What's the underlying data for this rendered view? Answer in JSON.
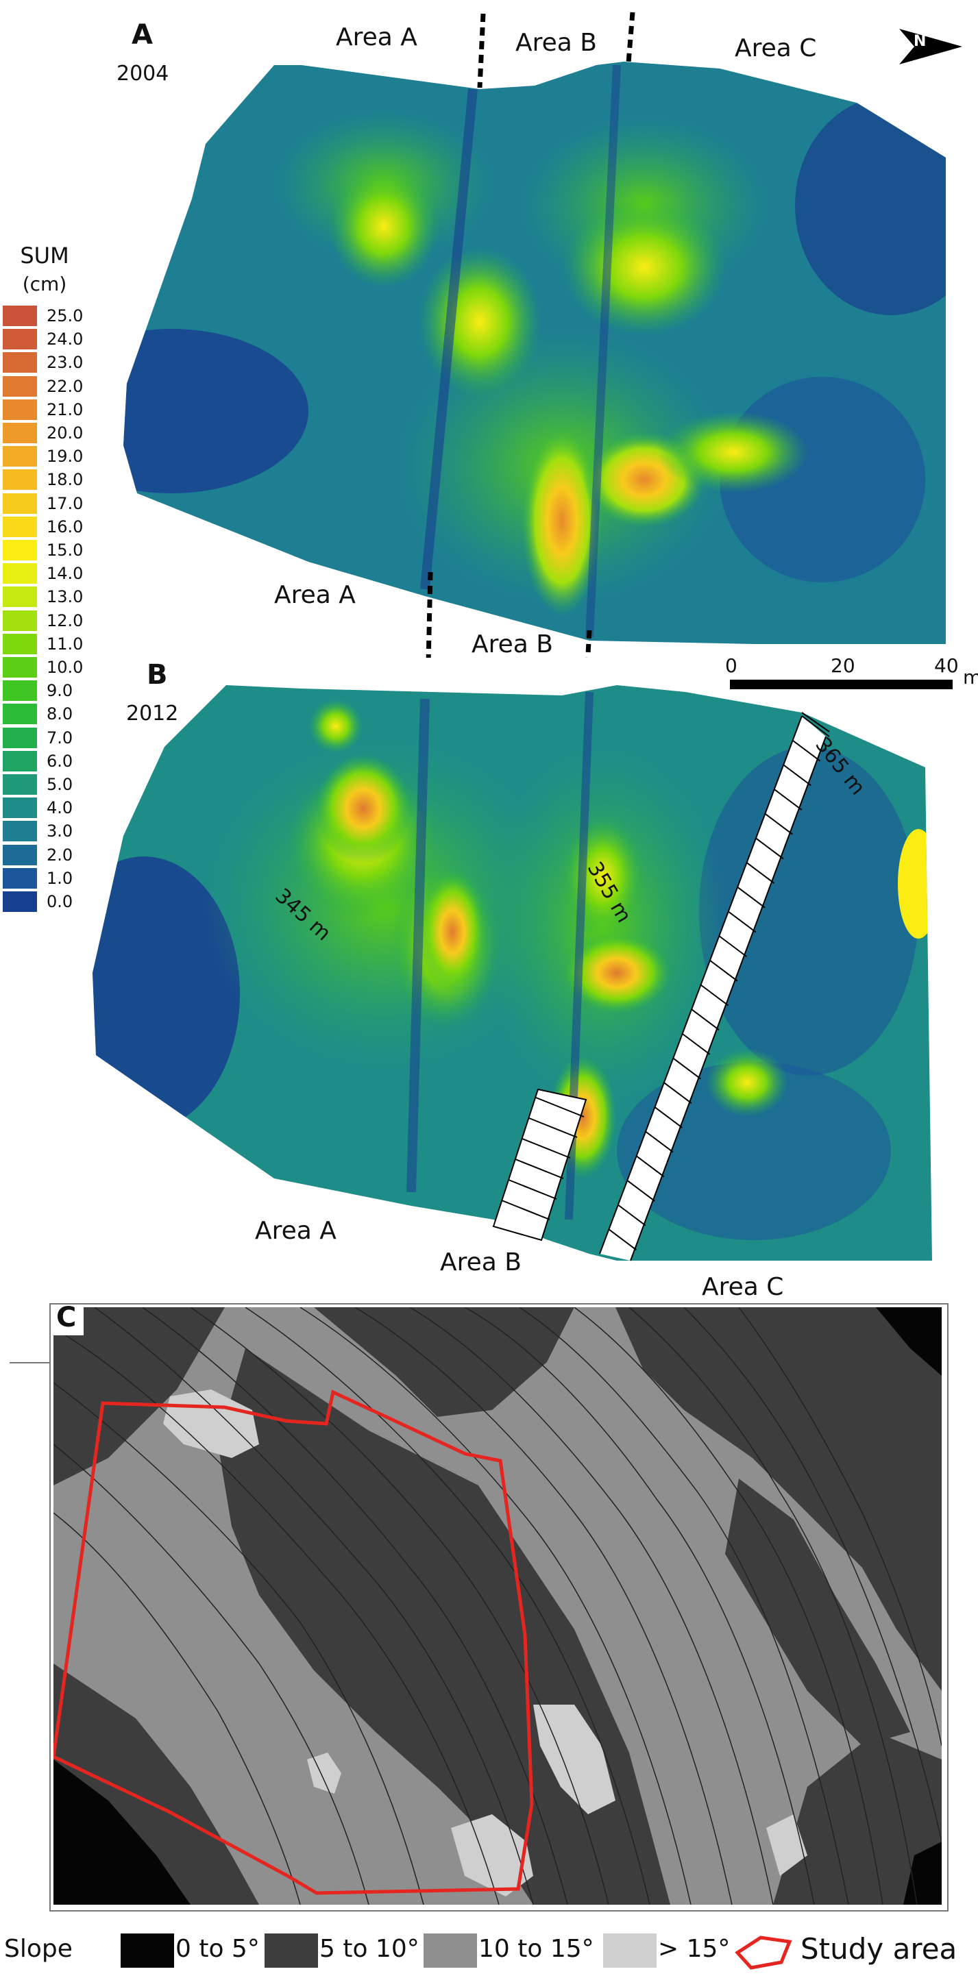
{
  "panel_a": {
    "letter": "A",
    "year": "2004",
    "area_labels": [
      "Area A",
      "Area B",
      "Area C"
    ]
  },
  "panel_b": {
    "letter": "B",
    "year": "2012",
    "area_labels_top": [
      "Area A",
      "Area B"
    ],
    "area_labels_bottom": [
      "Area A",
      "Area B",
      "Area C"
    ]
  },
  "panel_c": {
    "letter": "C",
    "contours": [
      "345 m",
      "355 m",
      "365 m"
    ]
  },
  "north_arrow": {
    "label": "N",
    "icon": "north-arrow-icon"
  },
  "scale_bar": {
    "ticks": [
      "0",
      "20",
      "40"
    ],
    "unit": "m"
  },
  "sum_legend": {
    "title": "SUM",
    "unit": "(cm)",
    "entries": [
      {
        "label": "25.0",
        "color": "#c9543a"
      },
      {
        "label": "24.0",
        "color": "#cf5c36"
      },
      {
        "label": "23.0",
        "color": "#d76a33"
      },
      {
        "label": "22.0",
        "color": "#e07a30"
      },
      {
        "label": "21.0",
        "color": "#e8892c"
      },
      {
        "label": "20.0",
        "color": "#ee9a28"
      },
      {
        "label": "19.0",
        "color": "#f2ab24"
      },
      {
        "label": "18.0",
        "color": "#f5bb20"
      },
      {
        "label": "17.0",
        "color": "#f7cb1c"
      },
      {
        "label": "16.0",
        "color": "#f9da18"
      },
      {
        "label": "15.0",
        "color": "#fbec14"
      },
      {
        "label": "14.0",
        "color": "#e8f012"
      },
      {
        "label": "13.0",
        "color": "#c6e910"
      },
      {
        "label": "12.0",
        "color": "#a2e00e"
      },
      {
        "label": "11.0",
        "color": "#7ed80c"
      },
      {
        "label": "10.0",
        "color": "#5ccf14"
      },
      {
        "label": "9.0",
        "color": "#3fc622"
      },
      {
        "label": "8.0",
        "color": "#2bbb36"
      },
      {
        "label": "7.0",
        "color": "#22b04c"
      },
      {
        "label": "6.0",
        "color": "#1fa563"
      },
      {
        "label": "5.0",
        "color": "#1e9a78"
      },
      {
        "label": "4.0",
        "color": "#1e8d88"
      },
      {
        "label": "3.0",
        "color": "#1e7f92"
      },
      {
        "label": "2.0",
        "color": "#1d6c98"
      },
      {
        "label": "1.0",
        "color": "#1b579a"
      },
      {
        "label": "0.0",
        "color": "#173f8f"
      }
    ]
  },
  "slope_legend": {
    "title": "Slope",
    "classes": [
      {
        "label": "0 to 5°",
        "color": "#050505"
      },
      {
        "label": "5 to 10°",
        "color": "#3d3d3d"
      },
      {
        "label": "10 to 15°",
        "color": "#8f8f8f"
      },
      {
        "label": "> 15°",
        "color": "#cfcfcf"
      }
    ],
    "study_area_label": "Study area",
    "study_area_color": "#e52520"
  }
}
